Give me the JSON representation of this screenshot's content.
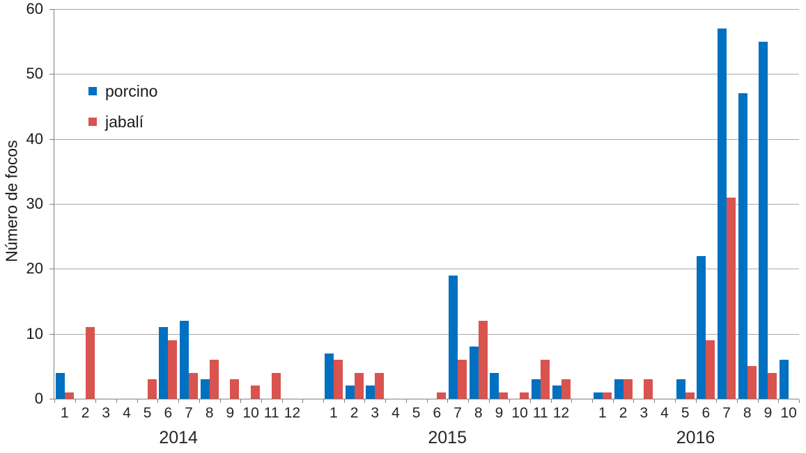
{
  "chart_data": {
    "type": "bar",
    "title": "",
    "ylabel": "Número de focos",
    "xlabel": "",
    "ylim": [
      0,
      60
    ],
    "yticks": [
      0,
      10,
      20,
      30,
      40,
      50,
      60
    ],
    "grid": true,
    "legend_position": "upper-left-inside",
    "legend": [
      {
        "name": "porcino",
        "color": "#0070C0"
      },
      {
        "name": "jabalí",
        "color": "#D9534F"
      }
    ],
    "axis_color": "#808080",
    "gridline_color": "#a6a6a6",
    "groups": [
      {
        "year": "2014",
        "categories": [
          "1",
          "2",
          "3",
          "4",
          "5",
          "6",
          "7",
          "8",
          "9",
          "10",
          "11",
          "12"
        ],
        "series": [
          {
            "name": "porcino",
            "values": [
              4,
              0,
              0,
              0,
              0,
              11,
              12,
              3,
              0,
              0,
              0,
              0
            ]
          },
          {
            "name": "jabalí",
            "values": [
              1,
              11,
              0,
              0,
              3,
              9,
              4,
              6,
              3,
              2,
              4,
              0
            ]
          }
        ]
      },
      {
        "year": "2015",
        "categories": [
          "1",
          "2",
          "3",
          "4",
          "5",
          "6",
          "7",
          "8",
          "9",
          "10",
          "11",
          "12"
        ],
        "series": [
          {
            "name": "porcino",
            "values": [
              7,
              2,
              2,
              0,
              0,
              0,
              19,
              8,
              4,
              0,
              3,
              2
            ]
          },
          {
            "name": "jabalí",
            "values": [
              6,
              4,
              4,
              0,
              0,
              1,
              6,
              12,
              1,
              1,
              6,
              3
            ]
          }
        ]
      },
      {
        "year": "2016",
        "categories": [
          "1",
          "2",
          "3",
          "4",
          "5",
          "6",
          "7",
          "8",
          "9",
          "10"
        ],
        "series": [
          {
            "name": "porcino",
            "values": [
              1,
              3,
              0,
              0,
              3,
              22,
              57,
              47,
              55,
              6
            ]
          },
          {
            "name": "jabalí",
            "values": [
              1,
              3,
              3,
              0,
              1,
              9,
              31,
              5,
              4,
              0
            ]
          }
        ]
      }
    ]
  }
}
